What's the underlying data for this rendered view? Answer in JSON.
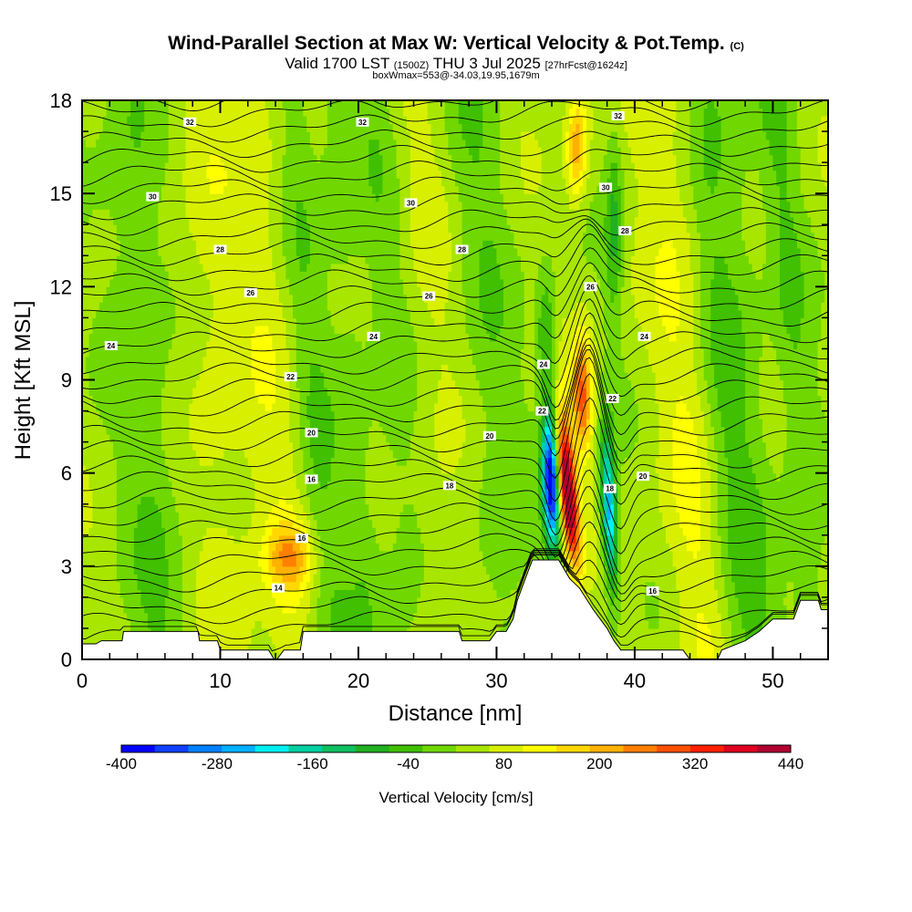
{
  "title": {
    "main": "Wind-Parallel Section at Max W: Vertical Velocity & Pot.Temp.",
    "copyright": "(C)",
    "valid_prefix": "Valid 1700 LST",
    "valid_utc": "(1500Z)",
    "valid_suffix": "THU 3 Jul 2025",
    "forecast": "[27hrFcst@1624z]",
    "box_info": "boxWmax=553@-34.03,19.95,1679m"
  },
  "chart_data": {
    "type": "heatmap",
    "xlabel": "Distance [nm]",
    "ylabel": "Height [Kft MSL]",
    "xlim": [
      0,
      54
    ],
    "ylim": [
      0,
      18
    ],
    "x_ticks": [
      0,
      10,
      20,
      30,
      40,
      50
    ],
    "y_ticks": [
      0,
      3,
      6,
      9,
      12,
      15,
      18
    ],
    "colorbar": {
      "title": "Vertical Velocity [cm/s]",
      "range": [
        -400,
        440
      ],
      "tick_labels": [
        "-400",
        "-280",
        "-160",
        "-40",
        "80",
        "200",
        "320",
        "440"
      ],
      "colors": [
        "#0000ff",
        "#1040ff",
        "#0080ff",
        "#00b0ff",
        "#00f0f0",
        "#00d0a0",
        "#10c060",
        "#20b020",
        "#40c000",
        "#70d800",
        "#a8e600",
        "#d8f000",
        "#ffff00",
        "#ffd800",
        "#ffb000",
        "#ff8000",
        "#ff5000",
        "#ff2000",
        "#e00020",
        "#b00030"
      ]
    },
    "terrain_kft": [
      [
        0,
        0.5
      ],
      [
        1,
        0.5
      ],
      [
        1.4,
        0.6
      ],
      [
        1.5,
        0.6
      ],
      [
        1.6,
        0.6
      ],
      [
        2.9,
        0.6
      ],
      [
        3,
        0.9
      ],
      [
        8.4,
        0.9
      ],
      [
        8.5,
        0.6
      ],
      [
        9.8,
        0.6
      ],
      [
        10,
        0.3
      ],
      [
        13.5,
        0.3
      ],
      [
        13.9,
        0
      ],
      [
        14.1,
        0
      ],
      [
        14.6,
        0.3
      ],
      [
        15.8,
        0.3
      ],
      [
        16,
        0.9
      ],
      [
        27.3,
        0.9
      ],
      [
        27.5,
        0.6
      ],
      [
        29.5,
        0.6
      ],
      [
        30,
        0.9
      ],
      [
        30.7,
        0.9
      ],
      [
        31.2,
        1.3
      ],
      [
        31.5,
        1.9
      ],
      [
        32,
        2.5
      ],
      [
        32.6,
        3.2
      ],
      [
        34.5,
        3.2
      ],
      [
        35.3,
        2.6
      ],
      [
        36,
        2.3
      ],
      [
        37,
        1.6
      ],
      [
        38,
        1.0
      ],
      [
        38.5,
        0.6
      ],
      [
        39,
        0.3
      ],
      [
        40,
        0.3
      ],
      [
        43.5,
        0.3
      ],
      [
        44,
        0
      ],
      [
        46,
        0
      ],
      [
        46.3,
        0.3
      ],
      [
        48,
        0.6
      ],
      [
        49,
        0.9
      ],
      [
        50,
        1.3
      ],
      [
        51.5,
        1.3
      ],
      [
        52,
        1.9
      ],
      [
        53.3,
        1.9
      ],
      [
        53.5,
        1.6
      ],
      [
        54,
        1.6
      ]
    ],
    "updraft_cores": [
      {
        "x": 37.0,
        "y": 5.5,
        "w_cm_s": 440
      },
      {
        "x": 37.3,
        "y": 8.0,
        "w_cm_s": 320
      },
      {
        "x": 35.5,
        "y": 17.0,
        "w_cm_s": 200
      },
      {
        "x": 15.0,
        "y": 3.3,
        "w_cm_s": 200
      }
    ],
    "downdraft_cores": [
      {
        "x": 34.5,
        "y": 5.8,
        "w_cm_s": -400
      },
      {
        "x": 38.8,
        "y": 4.5,
        "w_cm_s": -220
      }
    ],
    "theta_contour_labels": [
      {
        "text": "32",
        "x": 7.8,
        "y": 17.3
      },
      {
        "text": "32",
        "x": 20.3,
        "y": 17.3
      },
      {
        "text": "32",
        "x": 38.8,
        "y": 17.5
      },
      {
        "text": "30",
        "x": 5.1,
        "y": 14.9
      },
      {
        "text": "30",
        "x": 23.8,
        "y": 14.7
      },
      {
        "text": "30",
        "x": 37.9,
        "y": 15.2
      },
      {
        "text": "28",
        "x": 10.0,
        "y": 13.2
      },
      {
        "text": "28",
        "x": 27.5,
        "y": 13.2
      },
      {
        "text": "28",
        "x": 39.3,
        "y": 13.8
      },
      {
        "text": "26",
        "x": 12.2,
        "y": 11.8
      },
      {
        "text": "26",
        "x": 25.1,
        "y": 11.7
      },
      {
        "text": "26",
        "x": 36.8,
        "y": 12.0
      },
      {
        "text": "24",
        "x": 2.1,
        "y": 10.1
      },
      {
        "text": "24",
        "x": 21.1,
        "y": 10.4
      },
      {
        "text": "24",
        "x": 33.4,
        "y": 9.5
      },
      {
        "text": "24",
        "x": 40.7,
        "y": 10.4
      },
      {
        "text": "22",
        "x": 15.1,
        "y": 9.1
      },
      {
        "text": "22",
        "x": 33.3,
        "y": 8.0
      },
      {
        "text": "22",
        "x": 38.4,
        "y": 8.4
      },
      {
        "text": "20",
        "x": 16.6,
        "y": 7.3
      },
      {
        "text": "20",
        "x": 29.5,
        "y": 7.2
      },
      {
        "text": "20",
        "x": 40.6,
        "y": 5.9
      },
      {
        "text": "18",
        "x": 26.6,
        "y": 5.6
      },
      {
        "text": "18",
        "x": 38.2,
        "y": 5.5
      },
      {
        "text": "16",
        "x": 16.6,
        "y": 5.8
      },
      {
        "text": "16",
        "x": 15.9,
        "y": 3.9
      },
      {
        "text": "16",
        "x": 41.3,
        "y": 2.2
      },
      {
        "text": "14",
        "x": 14.2,
        "y": 2.3
      }
    ]
  }
}
